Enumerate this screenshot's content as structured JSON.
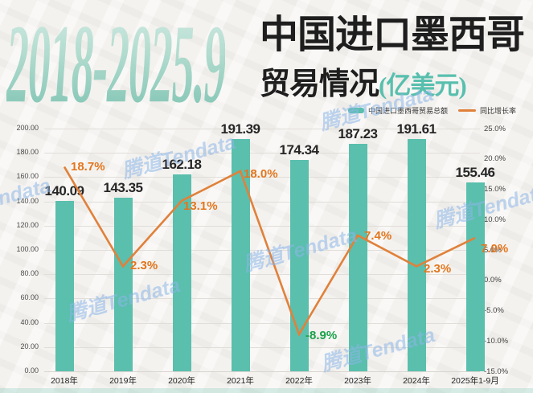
{
  "header": {
    "year_range": "2018-2025.9",
    "title": "中国进口墨西哥",
    "subtitle": "贸易情况",
    "unit": "(亿美元)"
  },
  "legend": [
    {
      "label": "中国进口墨西哥贸易总额",
      "type": "bar",
      "color": "#5abfad"
    },
    {
      "label": "同比增长率",
      "type": "line",
      "color": "#e0813b"
    }
  ],
  "watermark_text": "腾道Tendata",
  "colors": {
    "bar": "#5abfad",
    "line": "#e0813b",
    "label_positive": "#e2761e",
    "label_negative": "#1ba24a",
    "title_teal": "#58bfae",
    "background": "#f4f2ef"
  },
  "chart_data": {
    "type": "bar+line",
    "categories": [
      "2018年",
      "2019年",
      "2020年",
      "2021年",
      "2022年",
      "2023年",
      "2024年",
      "2025年1-9月"
    ],
    "series": [
      {
        "name": "中国进口墨西哥贸易总额",
        "type": "bar",
        "axis": "left",
        "values": [
          140.09,
          143.35,
          162.18,
          191.39,
          174.34,
          187.23,
          191.61,
          155.46
        ],
        "labels": [
          "140.09",
          "143.35",
          "162.18",
          "191.39",
          "174.34",
          "187.23",
          "191.61",
          "155.46"
        ],
        "color": "#5abfad"
      },
      {
        "name": "同比增长率",
        "type": "line",
        "axis": "right",
        "values": [
          18.7,
          2.3,
          13.1,
          18.0,
          -8.9,
          7.4,
          2.3,
          7.0
        ],
        "labels": [
          "18.7%",
          "2.3%",
          "13.1%",
          "18.0%",
          "-8.9%",
          "7.4%",
          "2.3%",
          "7.0%"
        ],
        "label_colors": [
          "#e2761e",
          "#e2761e",
          "#e2761e",
          "#e2761e",
          "#1ba24a",
          "#e2761e",
          "#e2761e",
          "#e2761e"
        ],
        "color": "#e0813b"
      }
    ],
    "left_axis": {
      "ticks": [
        "200.00",
        "180.00",
        "160.00",
        "140.00",
        "120.00",
        "100.00",
        "80.00",
        "60.00",
        "40.00",
        "20.00",
        "0.00"
      ],
      "min": 0,
      "max": 200
    },
    "right_axis": {
      "ticks": [
        "25.0%",
        "20.0%",
        "15.0%",
        "10.0%",
        "5.0%",
        "0.0%",
        "-5.0%",
        "-10.0%",
        "-15.0%"
      ],
      "min": -15,
      "max": 25
    },
    "grid": true,
    "legend_position": "top-right",
    "title": "2018-2025.9 中国进口墨西哥贸易情况(亿美元)"
  }
}
